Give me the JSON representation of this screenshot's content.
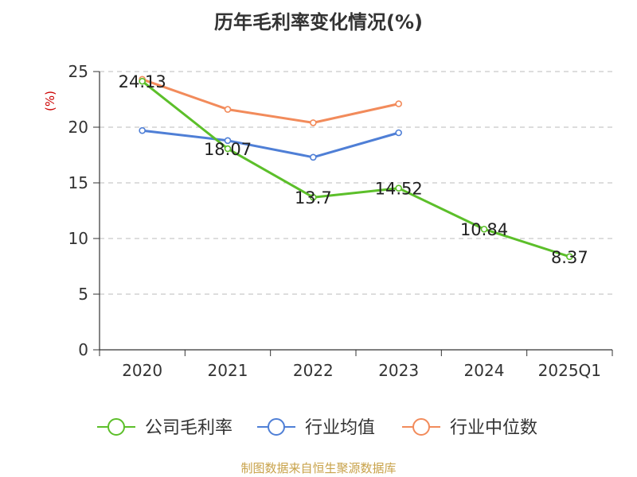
{
  "chart_data": {
    "type": "line",
    "title": "历年毛利率变化情况(%)",
    "ylabel": "(%)",
    "xlabel": "",
    "ylim": [
      0,
      25
    ],
    "yticks": [
      0,
      5,
      10,
      15,
      20,
      25
    ],
    "categories": [
      "2020",
      "2021",
      "2022",
      "2023",
      "2024",
      "2025Q1"
    ],
    "grid": true,
    "legend_position": "bottom",
    "series": [
      {
        "name": "公司毛利率",
        "color": "#5cbf2a",
        "values": [
          24.13,
          18.07,
          13.7,
          14.52,
          10.84,
          8.37
        ],
        "labels": [
          "24.13",
          "18.07",
          "13.7",
          "14.52",
          "10.84",
          "8.37"
        ],
        "show_labels": true
      },
      {
        "name": "行业均值",
        "color": "#4f7fd6",
        "values": [
          19.7,
          18.8,
          17.3,
          19.5,
          null,
          null
        ],
        "show_labels": false
      },
      {
        "name": "行业中位数",
        "color": "#f28b5b",
        "values": [
          24.3,
          21.6,
          20.4,
          22.1,
          null,
          null
        ],
        "show_labels": false
      }
    ]
  },
  "footer": "制图数据来自恒生聚源数据库"
}
